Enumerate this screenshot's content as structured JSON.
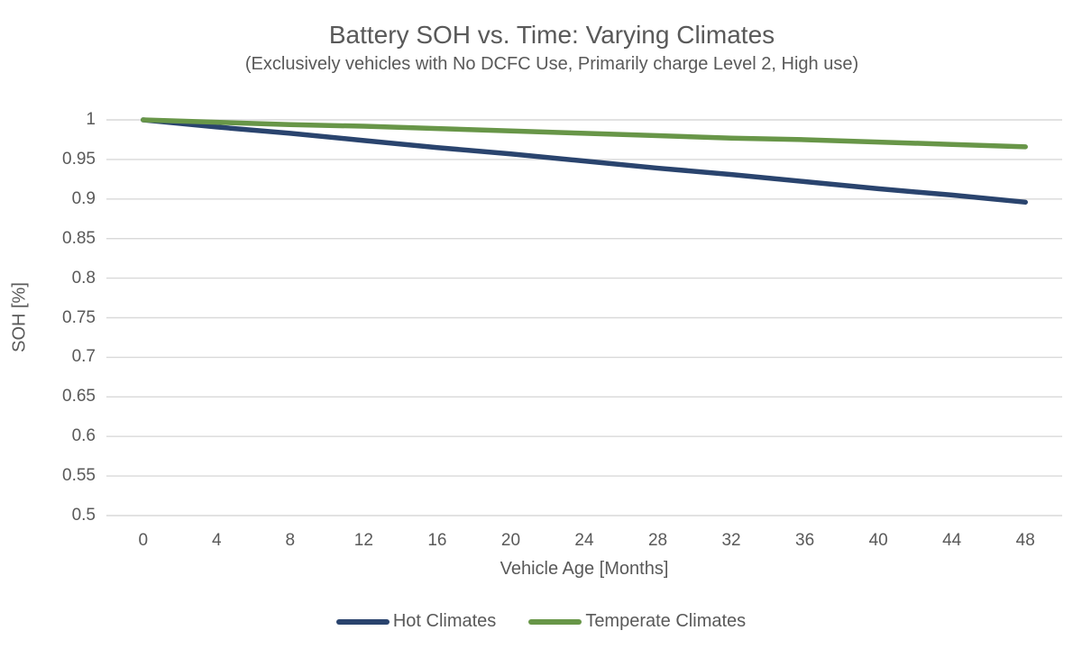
{
  "chart_data": {
    "type": "line",
    "title": "Battery SOH vs. Time: Varying Climates",
    "subtitle": "(Exclusively vehicles with No DCFC Use, Primarily charge Level 2, High use)",
    "xlabel": "Vehicle Age [Months]",
    "ylabel": "SOH [%]",
    "x": [
      0,
      4,
      8,
      12,
      16,
      20,
      24,
      28,
      32,
      36,
      40,
      44,
      48
    ],
    "x_tick_labels": [
      "0",
      "4",
      "8",
      "12",
      "16",
      "20",
      "24",
      "28",
      "32",
      "36",
      "40",
      "44",
      "48"
    ],
    "y_ticks": [
      1,
      0.95,
      0.9,
      0.85,
      0.8,
      0.75,
      0.7,
      0.65,
      0.6,
      0.55,
      0.5
    ],
    "y_tick_labels": [
      "1",
      "0.95",
      "0.9",
      "0.85",
      "0.8",
      "0.75",
      "0.7",
      "0.65",
      "0.6",
      "0.55",
      "0.5"
    ],
    "ylim": [
      0.5,
      1.0
    ],
    "grid": "horizontal",
    "legend_position": "bottom",
    "series": [
      {
        "name": "Hot Climates",
        "color": "#2A446E",
        "values": [
          1.0,
          0.991,
          0.983,
          0.974,
          0.965,
          0.957,
          0.948,
          0.939,
          0.931,
          0.922,
          0.913,
          0.905,
          0.896
        ]
      },
      {
        "name": "Temperate Climates",
        "color": "#689648",
        "values": [
          1.0,
          0.997,
          0.994,
          0.992,
          0.989,
          0.986,
          0.983,
          0.98,
          0.977,
          0.975,
          0.972,
          0.969,
          0.966
        ]
      }
    ],
    "colors": {
      "gridline": "#D9D9D9",
      "text": "#595959"
    }
  }
}
